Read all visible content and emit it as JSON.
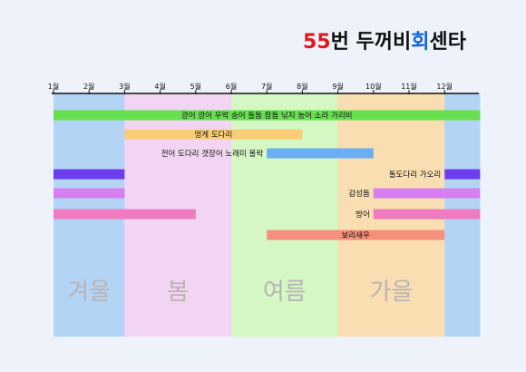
{
  "title": {
    "number": "55",
    "mid": "번 두꺼비",
    "hoe": "회",
    "end": "센타"
  },
  "chart_data": {
    "type": "bar",
    "orientation": "horizontal-timeline",
    "title": "55번 두꺼비회센타",
    "xlabel": "",
    "ylabel": "",
    "x_ticks": [
      "1월",
      "2월",
      "3월",
      "4월",
      "5월",
      "6월",
      "7월",
      "8월",
      "9월",
      "10월",
      "11월",
      "12월"
    ],
    "xlim": [
      1,
      13
    ],
    "seasons": [
      {
        "name": "겨울",
        "start": 1,
        "end": 3,
        "color": "#b4d4f5"
      },
      {
        "name": "봄",
        "start": 3,
        "end": 6,
        "color": "#f2d5f2"
      },
      {
        "name": "여름",
        "start": 6,
        "end": 9,
        "color": "#d4f7c3"
      },
      {
        "name": "가을",
        "start": 9,
        "end": 12,
        "color": "#f8deb0"
      },
      {
        "name": "",
        "start": 12,
        "end": 13,
        "color": "#b4d4f5"
      }
    ],
    "series": [
      {
        "name": "광어 광어 우럭 숭어 돌돔 참돔 낚지 농어 소라 가리비",
        "label_align": "center",
        "segments": [
          [
            1,
            13
          ]
        ],
        "color": "#66e04e"
      },
      {
        "name": "멍게 도다리",
        "label_align": "center",
        "segments": [
          [
            3,
            8
          ]
        ],
        "color": "#f9cc76"
      },
      {
        "name": "전어 도다리 갯장어 노래미 볼락",
        "label_align": "left",
        "segments": [
          [
            7,
            10
          ]
        ],
        "color": "#6aaef5"
      },
      {
        "name": "돌도다리 가오리",
        "label_align": "left",
        "segments": [
          [
            1,
            3
          ],
          [
            12,
            13
          ]
        ],
        "color": "#6c3ef0"
      },
      {
        "name": "감성돔",
        "label_align": "left",
        "segments": [
          [
            1,
            3
          ],
          [
            10,
            13
          ]
        ],
        "color": "#d77ef0"
      },
      {
        "name": "방어",
        "label_align": "left",
        "segments": [
          [
            1,
            5
          ],
          [
            10,
            13
          ]
        ],
        "color": "#f07bc0"
      },
      {
        "name": "보리새우",
        "label_align": "center",
        "segments": [
          [
            7,
            12
          ]
        ],
        "color": "#f5907c"
      }
    ],
    "grid": false,
    "legend": "none"
  }
}
